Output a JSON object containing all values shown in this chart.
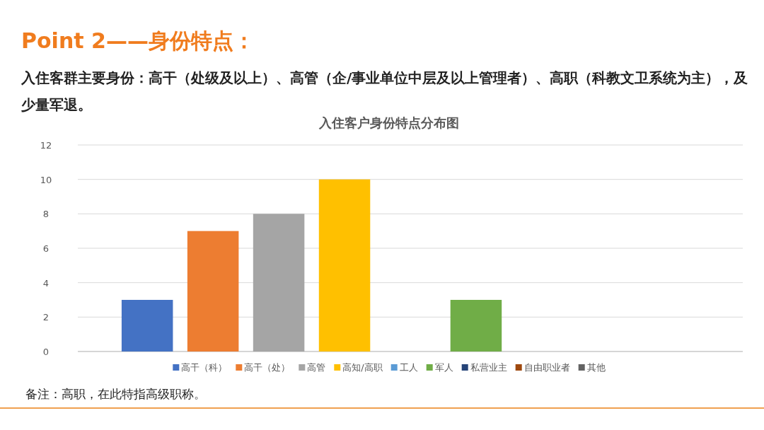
{
  "chart_data": [
    {
      "type": "other",
      "title": "Point 2——身份特点：",
      "subtitle": "入住客群主要身份：高干（处级及以上）、高管（企/事业单位中层及以上管理者）、高职（科教文卫系统为主），及少量军退。"
    },
    {
      "type": "bar",
      "title": "入住客户身份特点分布图",
      "categories": [
        null
      ],
      "series": [
        {
          "name": "高干（科）",
          "color": "#4472c4",
          "values": [
            3
          ]
        },
        {
          "name": "高干（处）",
          "color": "#ed7d31",
          "values": [
            7
          ]
        },
        {
          "name": "高管",
          "color": "#a5a5a5",
          "values": [
            8
          ]
        },
        {
          "name": "高知/高职",
          "color": "#ffc000",
          "values": [
            10
          ]
        },
        {
          "name": "工人",
          "color": "#5b9bd5",
          "values": [
            0
          ]
        },
        {
          "name": "军人",
          "color": "#70ad47",
          "values": [
            3
          ]
        },
        {
          "name": "私营业主",
          "color": "#264478",
          "values": [
            0
          ]
        },
        {
          "name": "自由职业者",
          "color": "#9e480e",
          "values": [
            0
          ]
        },
        {
          "name": "其他",
          "color": "#636363",
          "values": [
            0
          ]
        }
      ],
      "ylim": [
        0,
        12
      ],
      "yticks": [
        0,
        2,
        4,
        6,
        8,
        10,
        12
      ],
      "grid": "y",
      "legend": "bottom",
      "annotations": [
        "备注：高职，在此特指高级职称。"
      ]
    }
  ]
}
